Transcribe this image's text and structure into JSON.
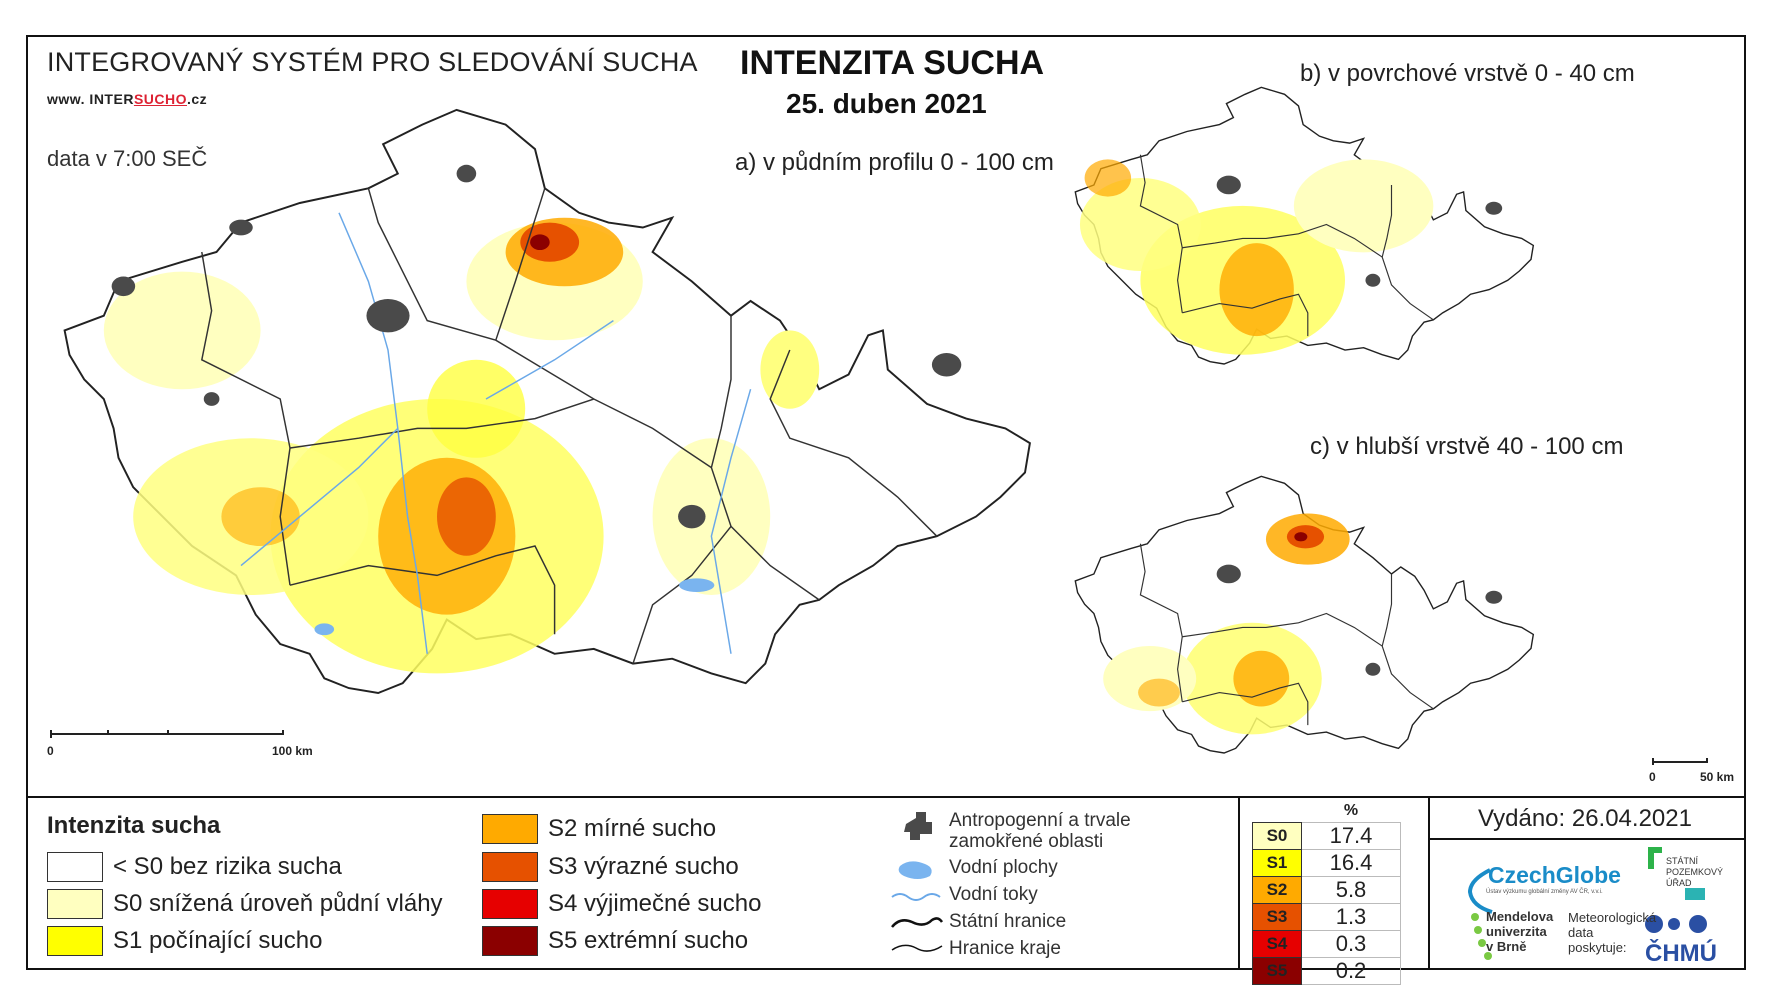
{
  "header": {
    "system": "INTEGROVANÝ SYSTÉM PRO SLEDOVÁNÍ SUCHA",
    "url_prefix": "www. INTER",
    "url_accent": "SUCHO",
    "url_suffix": ".cz",
    "data_time": "data v 7:00 SEČ",
    "title": "INTENZITA SUCHA",
    "date": "25. duben 2021",
    "map_a": "a) v půdním profilu 0 - 100 cm",
    "map_b": "b) v povrchové vrstvě 0 - 40 cm",
    "map_c": "c) v hlubší vrstvě 40 - 100 cm"
  },
  "scale_a": {
    "start": "0",
    "end": "100 km"
  },
  "scale_small": {
    "start": "0",
    "end": "50 km"
  },
  "legend": {
    "title": "Intenzita sucha",
    "items": [
      {
        "label": "< S0 bez rizika sucha",
        "color": "#ffffff"
      },
      {
        "label": "S0 snížená úroveň půdní vláhy",
        "color": "#ffffc0"
      },
      {
        "label": "S1 počínající sucho",
        "color": "#ffff00"
      },
      {
        "label": "S2 mírné sucho",
        "color": "#ffaa00"
      },
      {
        "label": "S3 výrazné sucho",
        "color": "#e65100"
      },
      {
        "label": "S4 výjimečné sucho",
        "color": "#e60000"
      },
      {
        "label": "S5 extrémní sucho",
        "color": "#8b0000"
      }
    ]
  },
  "symbols": {
    "urban": "Antropogenní a trvale zamokřené oblasti",
    "water_areas": "Vodní plochy",
    "rivers": "Vodní toky",
    "border": "Státní hranice",
    "regions": "Hranice kraje"
  },
  "percent": {
    "header": "%",
    "rows": [
      {
        "code": "S0",
        "value": "17.4",
        "color": "#ffffc0"
      },
      {
        "code": "S1",
        "value": "16.4",
        "color": "#ffff00"
      },
      {
        "code": "S2",
        "value": "5.8",
        "color": "#ffaa00"
      },
      {
        "code": "S3",
        "value": "1.3",
        "color": "#e65100"
      },
      {
        "code": "S4",
        "value": "0.3",
        "color": "#e60000"
      },
      {
        "code": "S5",
        "value": "0.2",
        "color": "#8b0000"
      }
    ]
  },
  "issued": "Vydáno: 26.04.2021",
  "logos": {
    "czechglobe": "CzechGlobe",
    "czechglobe_sub": "Ústav výzkumu globální změny AV ČR, v.v.i.",
    "spu": [
      "STÁTNÍ",
      "POZEMKOVÝ",
      "ÚŘAD"
    ],
    "mendel": [
      "Mendelova",
      "univerzita",
      "v Brně"
    ],
    "meteo": [
      "Meteorologická",
      "data",
      "poskytuje:"
    ],
    "chmu": "ČHMÚ"
  }
}
